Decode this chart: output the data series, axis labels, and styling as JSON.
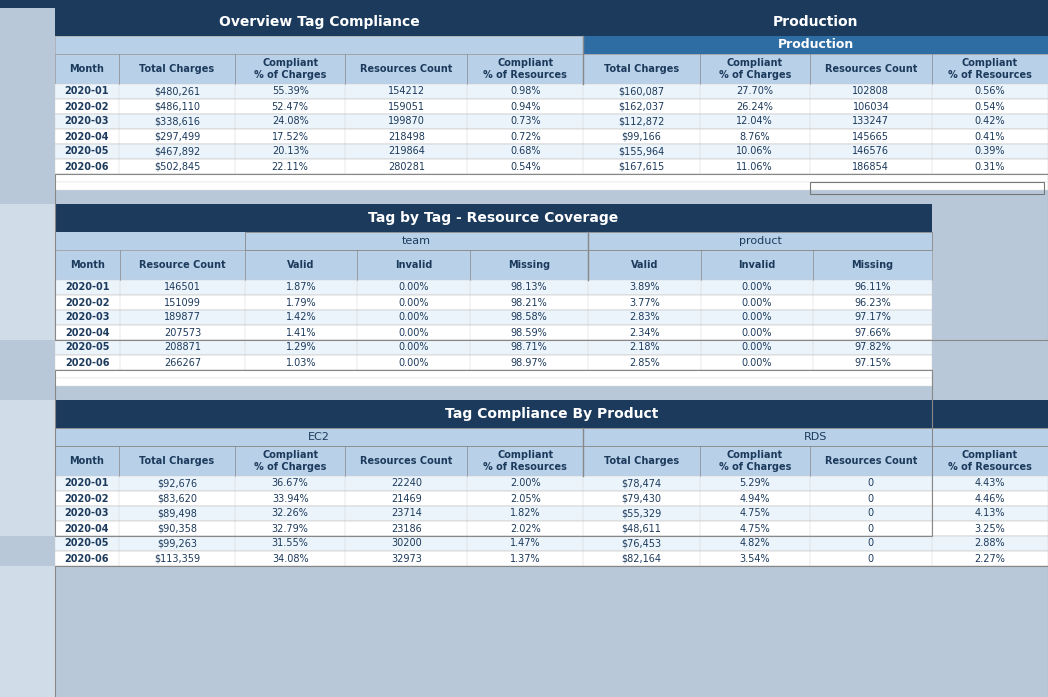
{
  "dark_blue": "#1C3A5C",
  "medium_blue": "#2E6DA4",
  "light_blue": "#B8D0E8",
  "white": "#FFFFFF",
  "row_alt": "#EBF4FB",
  "bg": "#B8C8D8",
  "left_col_bg": "#D0DCE8",
  "section1_title": "Overview Tag Compliance",
  "section1_sub_title": "Production",
  "section1_headers": [
    "Month",
    "Total Charges",
    "Compliant\n% of Charges",
    "Resources Count",
    "Compliant\n% of Resources",
    "Total Charges",
    "Compliant\n% of Charges",
    "Resources Count",
    "Compliant\n% of Resources"
  ],
  "section1_data": [
    [
      "2020-01",
      "$480,261",
      "55.39%",
      "154212",
      "0.98%",
      "$160,087",
      "27.70%",
      "102808",
      "0.56%"
    ],
    [
      "2020-02",
      "$486,110",
      "52.47%",
      "159051",
      "0.94%",
      "$162,037",
      "26.24%",
      "106034",
      "0.54%"
    ],
    [
      "2020-03",
      "$338,616",
      "24.08%",
      "199870",
      "0.73%",
      "$112,872",
      "12.04%",
      "133247",
      "0.42%"
    ],
    [
      "2020-04",
      "$297,499",
      "17.52%",
      "218498",
      "0.72%",
      "$99,166",
      "8.76%",
      "145665",
      "0.41%"
    ],
    [
      "2020-05",
      "$467,892",
      "20.13%",
      "219864",
      "0.68%",
      "$155,964",
      "10.06%",
      "146576",
      "0.39%"
    ],
    [
      "2020-06",
      "$502,845",
      "22.11%",
      "280281",
      "0.54%",
      "$167,615",
      "11.06%",
      "186854",
      "0.31%"
    ]
  ],
  "section2_title": "Tag by Tag - Resource Coverage",
  "section2_sub1": "team",
  "section2_sub2": "product",
  "section2_headers": [
    "Month",
    "Resource Count",
    "Valid",
    "Invalid",
    "Missing",
    "Valid",
    "Invalid",
    "Missing"
  ],
  "section2_data": [
    [
      "2020-01",
      "146501",
      "1.87%",
      "0.00%",
      "98.13%",
      "3.89%",
      "0.00%",
      "96.11%"
    ],
    [
      "2020-02",
      "151099",
      "1.79%",
      "0.00%",
      "98.21%",
      "3.77%",
      "0.00%",
      "96.23%"
    ],
    [
      "2020-03",
      "189877",
      "1.42%",
      "0.00%",
      "98.58%",
      "2.83%",
      "0.00%",
      "97.17%"
    ],
    [
      "2020-04",
      "207573",
      "1.41%",
      "0.00%",
      "98.59%",
      "2.34%",
      "0.00%",
      "97.66%"
    ],
    [
      "2020-05",
      "208871",
      "1.29%",
      "0.00%",
      "98.71%",
      "2.18%",
      "0.00%",
      "97.82%"
    ],
    [
      "2020-06",
      "266267",
      "1.03%",
      "0.00%",
      "98.97%",
      "2.85%",
      "0.00%",
      "97.15%"
    ]
  ],
  "section3_title": "Tag Compliance By Product",
  "section3_sub1": "EC2",
  "section3_sub2": "RDS",
  "section3_headers": [
    "Month",
    "Total Charges",
    "Compliant\n% of Charges",
    "Resources Count",
    "Compliant\n% of Resources",
    "Total Charges",
    "Compliant\n% of Charges",
    "Resources Count",
    "Compliant\n% of Resources"
  ],
  "section3_data": [
    [
      "2020-01",
      "$92,676",
      "36.67%",
      "22240",
      "2.00%",
      "$78,474",
      "5.29%",
      "0",
      "4.43%"
    ],
    [
      "2020-02",
      "$83,620",
      "33.94%",
      "21469",
      "2.05%",
      "$79,430",
      "4.94%",
      "0",
      "4.46%"
    ],
    [
      "2020-03",
      "$89,498",
      "32.26%",
      "23714",
      "1.82%",
      "$55,329",
      "4.75%",
      "0",
      "4.13%"
    ],
    [
      "2020-04",
      "$90,358",
      "32.79%",
      "23186",
      "2.02%",
      "$48,611",
      "4.75%",
      "0",
      "3.25%"
    ],
    [
      "2020-05",
      "$99,263",
      "31.55%",
      "30200",
      "1.47%",
      "$76,453",
      "4.82%",
      "0",
      "2.88%"
    ],
    [
      "2020-06",
      "$113,359",
      "34.08%",
      "32973",
      "1.37%",
      "$82,164",
      "3.54%",
      "0",
      "2.27%"
    ]
  ]
}
